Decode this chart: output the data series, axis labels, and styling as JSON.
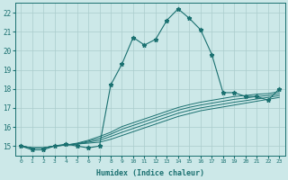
{
  "title": "",
  "xlabel": "Humidex (Indice chaleur)",
  "background_color": "#cce8e8",
  "line_color": "#1a7070",
  "grid_color": "#aacccc",
  "xlim": [
    -0.5,
    23.5
  ],
  "ylim": [
    14.5,
    22.5
  ],
  "ytick_positions": [
    15,
    16,
    17,
    18,
    19,
    20,
    21,
    22
  ],
  "ytick_labels": [
    "15",
    "16",
    "17",
    "18",
    "19",
    "20",
    "21",
    "22"
  ],
  "xtick_positions": [
    0,
    1,
    2,
    3,
    4,
    5,
    6,
    7,
    8,
    9,
    10,
    11,
    12,
    13,
    14,
    15,
    16,
    17,
    18,
    19,
    20,
    21,
    22,
    23
  ],
  "xtick_labels": [
    "0",
    "1",
    "2",
    "3",
    "4",
    "5",
    "6",
    "7",
    "8",
    "9",
    "10",
    "11",
    "12",
    "13",
    "14",
    "15",
    "16",
    "17",
    "18",
    "19",
    "20",
    "21",
    "22",
    "23"
  ],
  "main_y": [
    15.0,
    14.8,
    14.8,
    15.0,
    15.1,
    15.0,
    14.9,
    15.0,
    18.2,
    19.3,
    20.7,
    20.3,
    20.6,
    21.6,
    22.2,
    21.7,
    21.1,
    19.8,
    17.8,
    17.8,
    17.6,
    17.6,
    17.4,
    18.0
  ],
  "line2_y": [
    15.0,
    14.9,
    14.9,
    15.0,
    15.05,
    15.1,
    15.15,
    15.2,
    15.35,
    15.55,
    15.75,
    15.95,
    16.15,
    16.35,
    16.55,
    16.7,
    16.85,
    16.95,
    17.05,
    17.15,
    17.25,
    17.35,
    17.45,
    17.55
  ],
  "line3_y": [
    15.0,
    14.9,
    14.9,
    15.0,
    15.05,
    15.1,
    15.2,
    15.3,
    15.5,
    15.72,
    15.92,
    16.12,
    16.32,
    16.52,
    16.72,
    16.87,
    17.0,
    17.1,
    17.2,
    17.3,
    17.38,
    17.47,
    17.55,
    17.65
  ],
  "line4_y": [
    15.0,
    14.9,
    14.9,
    15.0,
    15.05,
    15.12,
    15.25,
    15.4,
    15.62,
    15.88,
    16.08,
    16.28,
    16.48,
    16.68,
    16.88,
    17.03,
    17.15,
    17.25,
    17.35,
    17.45,
    17.52,
    17.6,
    17.65,
    17.75
  ],
  "line5_y": [
    15.0,
    14.9,
    14.9,
    15.0,
    15.05,
    15.15,
    15.3,
    15.5,
    15.72,
    16.02,
    16.22,
    16.42,
    16.62,
    16.82,
    17.02,
    17.17,
    17.3,
    17.4,
    17.5,
    17.6,
    17.65,
    17.72,
    17.75,
    17.85
  ]
}
